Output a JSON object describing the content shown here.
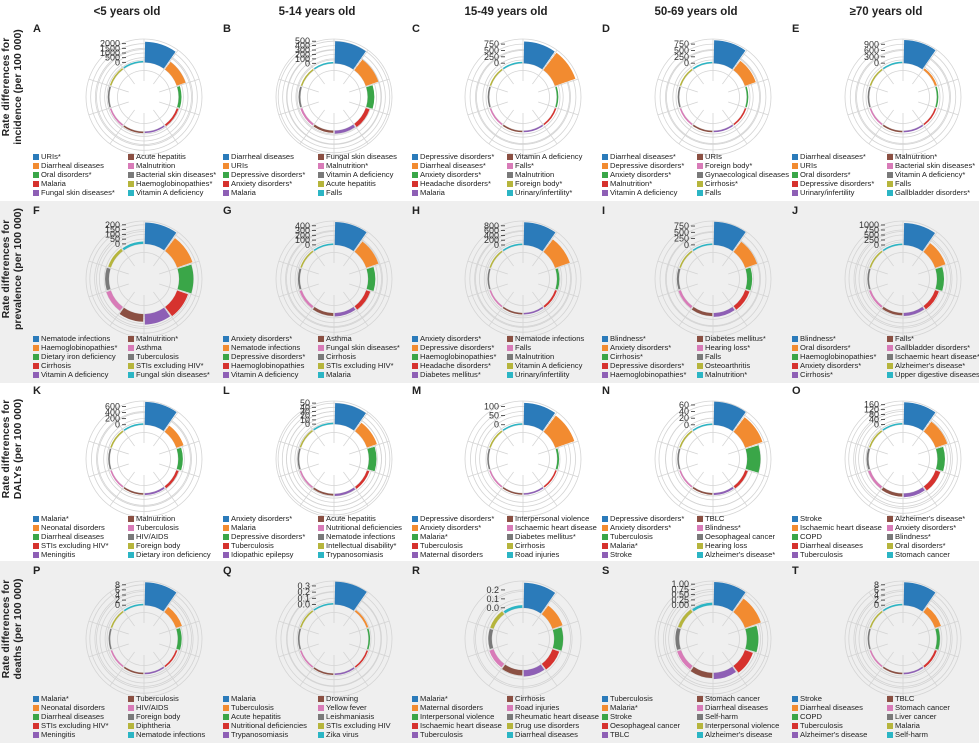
{
  "column_titles": [
    "<5 years old",
    "5-14 years old",
    "15-49 years old",
    "50-69 years old",
    "≥70 years old"
  ],
  "row_labels": [
    [
      "Rate differences for",
      "incidence (per 100 000)"
    ],
    [
      "Rate differences for",
      "prevalence (per 100 000)"
    ],
    [
      "Rate differences for",
      "DALYs (per 100 000)"
    ],
    [
      "Rate differences for",
      "deaths (per 100 000)"
    ]
  ],
  "colors": [
    "#2b7bba",
    "#f28b30",
    "#3aa648",
    "#d6322e",
    "#8e5fb5",
    "#8b5043",
    "#d87bb8",
    "#7a7a7a",
    "#b6b53c",
    "#2bb5c4"
  ],
  "chart_data": [
    {
      "letter": "A",
      "type": "polar-bar",
      "ticks": [
        "2000",
        "1500",
        "1000",
        "500",
        "0"
      ],
      "rmin": -2000,
      "rmax": 2500,
      "categories": [
        "URIs*",
        "Diarrheal diseases",
        "Oral disorders*",
        "Malaria",
        "Fungal skin diseases*",
        "Acute hepatitis",
        "Malnutrition",
        "Bacterial skin diseases*",
        "Haemoglobinopathies*",
        "Vitamin A deficiency"
      ],
      "values": [
        2200,
        1000,
        300,
        200,
        100,
        80,
        60,
        50,
        40,
        30
      ]
    },
    {
      "letter": "B",
      "type": "polar-bar",
      "ticks": [
        "500",
        "400",
        "300",
        "200",
        "100",
        "0"
      ],
      "rmin": -400,
      "rmax": 550,
      "categories": [
        "Diarrheal diseases",
        "URIs",
        "Depressive disorders*",
        "Anxiety disorders*",
        "Malaria",
        "Fungal skin diseases",
        "Malnutrition*",
        "Vitamin A deficiency",
        "Acute hepatitis",
        "Falls"
      ],
      "values": [
        500,
        300,
        150,
        90,
        70,
        50,
        45,
        40,
        30,
        25
      ]
    },
    {
      "letter": "C",
      "type": "polar-bar",
      "ticks": [
        "750",
        "500",
        "250",
        "0"
      ],
      "rmin": -700,
      "rmax": 950,
      "categories": [
        "Depressive disorders*",
        "Diarrheal diseases*",
        "Anxiety disorders*",
        "Headache disorders*",
        "Malaria",
        "Vitamin A deficiency",
        "Falls*",
        "Malnutrition",
        "Foreign body*",
        "Urinary/infertility*"
      ],
      "values": [
        850,
        850,
        60,
        50,
        40,
        35,
        30,
        25,
        20,
        20
      ]
    },
    {
      "letter": "D",
      "type": "polar-bar",
      "ticks": [
        "750",
        "500",
        "250",
        "0"
      ],
      "rmin": -700,
      "rmax": 950,
      "categories": [
        "Diarrheal diseases*",
        "Depressive disorders*",
        "Anxiety disorders*",
        "Malnutrition*",
        "Vitamin A deficiency",
        "URIs",
        "Foreign body*",
        "Gynaecological diseases",
        "Cirrhosis*",
        "Falls"
      ],
      "values": [
        900,
        450,
        50,
        40,
        35,
        30,
        25,
        20,
        20,
        15
      ]
    },
    {
      "letter": "E",
      "type": "polar-bar",
      "ticks": [
        "900",
        "600",
        "300",
        "0"
      ],
      "rmin": -850,
      "rmax": 1150,
      "categories": [
        "Diarrheal diseases*",
        "URIs",
        "Oral disorders*",
        "Depressive disorders*",
        "Urinary/infertility",
        "Malnutrition*",
        "Bacterial skin diseases*",
        "Vitamin A deficiency*",
        "Falls",
        "Gallbladder disorders*"
      ],
      "values": [
        1100,
        100,
        60,
        50,
        40,
        40,
        30,
        30,
        25,
        20
      ]
    },
    {
      "letter": "F",
      "type": "polar-bar",
      "ticks": [
        "200",
        "150",
        "100",
        "50",
        "0"
      ],
      "rmin": -200,
      "rmax": 240,
      "categories": [
        "Nematode infections",
        "Haemoglobinopathies*",
        "Dietary iron deficiency",
        "Cirrhosis",
        "Vitamin A deficiency",
        "Malnutrition*",
        "Asthma",
        "Tuberculosis",
        "STIs excluding HIV*",
        "Fungal skin diseases*"
      ],
      "values": [
        225,
        170,
        150,
        120,
        110,
        80,
        50,
        40,
        30,
        25
      ]
    },
    {
      "letter": "G",
      "type": "polar-bar",
      "ticks": [
        "400",
        "300",
        "200",
        "100",
        "0"
      ],
      "rmin": -380,
      "rmax": 500,
      "categories": [
        "Anxiety disorders*",
        "Nematode infections",
        "Depressive disorders*",
        "Haemoglobinopathies",
        "Vitamin A deficiency",
        "Asthma",
        "Fungal skin diseases*",
        "Cirrhosis",
        "STIs excluding HIV*",
        "Malaria"
      ],
      "values": [
        480,
        270,
        150,
        90,
        70,
        60,
        50,
        40,
        30,
        25
      ]
    },
    {
      "letter": "H",
      "type": "polar-bar",
      "ticks": [
        "800",
        "600",
        "400",
        "200",
        "0"
      ],
      "rmin": -750,
      "rmax": 1000,
      "categories": [
        "Anxiety disorders*",
        "Depressive disorders*",
        "Haemoglobinopathies*",
        "Headache disorders*",
        "Diabetes mellitus*",
        "Nematode infections",
        "Falls",
        "Malnutrition",
        "Vitamin A deficiency",
        "Urinary/infertility"
      ],
      "values": [
        950,
        650,
        100,
        80,
        60,
        50,
        40,
        35,
        30,
        25
      ]
    },
    {
      "letter": "I",
      "type": "polar-bar",
      "ticks": [
        "750",
        "500",
        "250",
        "0"
      ],
      "rmin": -720,
      "rmax": 950,
      "categories": [
        "Blindness*",
        "Anxiety disorders*",
        "Cirrhosis*",
        "Depressive disorders*",
        "Haemoglobinopathies*",
        "Diabetes mellitus*",
        "Hearing loss*",
        "Falls",
        "Osteoarthritis",
        "Malnutrition*"
      ],
      "values": [
        920,
        500,
        200,
        180,
        150,
        120,
        100,
        80,
        60,
        50
      ]
    },
    {
      "letter": "J",
      "type": "polar-bar",
      "ticks": [
        "1000",
        "750",
        "500",
        "250",
        "0"
      ],
      "rmin": -900,
      "rmax": 1200,
      "categories": [
        "Blindness*",
        "Oral disorders*",
        "Haemoglobinopathies*",
        "Anxiety disorders*",
        "Cirrhosis*",
        "Falls*",
        "Gallbladder disorders*",
        "Ischaemic heart disease*",
        "Alzheimer's disease*",
        "Upper digestive diseases*"
      ],
      "values": [
        1100,
        550,
        350,
        200,
        150,
        120,
        100,
        80,
        60,
        50
      ]
    },
    {
      "letter": "K",
      "type": "polar-bar",
      "ticks": [
        "600",
        "400",
        "200",
        "0"
      ],
      "rmin": -600,
      "rmax": 780,
      "categories": [
        "Malaria*",
        "Neonatal disorders",
        "Diarrheal diseases",
        "STIs excluding HIV*",
        "Meningitis",
        "Malnutrition",
        "Tuberculosis",
        "HIV/AIDS",
        "Foreign body",
        "Dietary iron deficiency"
      ],
      "values": [
        750,
        250,
        150,
        80,
        60,
        40,
        30,
        25,
        20,
        15
      ]
    },
    {
      "letter": "L",
      "type": "polar-bar",
      "ticks": [
        "50",
        "40",
        "30",
        "20",
        "10",
        "0"
      ],
      "rmin": -45,
      "rmax": 55,
      "categories": [
        "Anxiety disorders*",
        "Malaria",
        "Depressive disorders*",
        "Tuberculosis",
        "Idiopathic epilepsy",
        "Acute hepatitis",
        "Nutritional deficiencies",
        "Nematode infections",
        "Intellectual disability*",
        "Trypanosomiasis"
      ],
      "values": [
        50,
        25,
        18,
        6,
        5,
        4,
        3,
        3,
        2,
        2
      ]
    },
    {
      "letter": "M",
      "type": "polar-bar",
      "ticks": [
        "100",
        "50",
        "0"
      ],
      "rmin": -100,
      "rmax": 130,
      "categories": [
        "Depressive disorders*",
        "Anxiety disorders*",
        "Malaria*",
        "Tuberculosis",
        "Maternal disorders",
        "Interpersonal violence",
        "Ischaemic heart disease",
        "Diabetes mellitus*",
        "Cirrhosis",
        "Road injuries"
      ],
      "values": [
        120,
        110,
        10,
        8,
        6,
        5,
        5,
        4,
        3,
        3
      ]
    },
    {
      "letter": "N",
      "type": "polar-bar",
      "ticks": [
        "60",
        "40",
        "20",
        "0"
      ],
      "rmin": -55,
      "rmax": 72,
      "categories": [
        "Depressive disorders*",
        "Anxiety disorders*",
        "Tuberculosis",
        "Malaria*",
        "Stroke",
        "TBLC",
        "Blindness*",
        "Oesophageal cancer",
        "Hearing loss",
        "Alzheimer's disease*"
      ],
      "values": [
        70,
        55,
        40,
        8,
        6,
        5,
        4,
        3,
        3,
        2
      ]
    },
    {
      "letter": "O",
      "type": "polar-bar",
      "ticks": [
        "160",
        "120",
        "80",
        "40",
        "0"
      ],
      "rmin": -150,
      "rmax": 190,
      "categories": [
        "Stroke",
        "Ischaemic heart disease",
        "COPD",
        "Diarrheal diseases",
        "Tuberculosis",
        "Alzheimer's disease*",
        "Anxiety disorders*",
        "Blindness*",
        "Oral disorders*",
        "Stomach cancer"
      ],
      "values": [
        180,
        100,
        60,
        40,
        30,
        25,
        20,
        15,
        12,
        10
      ]
    },
    {
      "letter": "P",
      "type": "polar-bar",
      "ticks": [
        "8",
        "6",
        "4",
        "2",
        "0"
      ],
      "rmin": -7,
      "rmax": 9.5,
      "categories": [
        "Malaria*",
        "Neonatal disorders",
        "Diarrheal diseases",
        "STIs excluding HIV*",
        "Meningitis",
        "Tuberculosis",
        "HIV/AIDS",
        "Foreign body",
        "Diphtheria",
        "Nematode infections"
      ],
      "values": [
        9,
        2.5,
        1.5,
        0.6,
        0.5,
        0.4,
        0.3,
        0.3,
        0.2,
        0.2
      ]
    },
    {
      "letter": "Q",
      "type": "polar-bar",
      "ticks": [
        "0.3",
        "0.2",
        "0.1",
        "0.0"
      ],
      "rmin": -0.3,
      "rmax": 0.38,
      "categories": [
        "Malaria",
        "Tuberculosis",
        "Acute hepatitis",
        "Nutritional deficiencies",
        "Trypanosomiasis",
        "Drowning",
        "Yellow fever",
        "Leishmaniasis",
        "STIs excluding HIV",
        "Zika virus"
      ],
      "values": [
        0.37,
        0.03,
        0.02,
        0.02,
        0.01,
        0.01,
        0.01,
        0.01,
        0.01,
        0.01
      ]
    },
    {
      "letter": "R",
      "type": "polar-bar",
      "ticks": [
        "0.2",
        "0.1",
        "0.0"
      ],
      "rmin": -0.17,
      "rmax": 0.3,
      "categories": [
        "Malaria*",
        "Maternal disorders",
        "Interpersonal violence",
        "Ischaemic heart disease",
        "Tuberculosis",
        "Cirrhosis",
        "Road injuries",
        "Rheumatic heart disease",
        "Drug use disorders",
        "Diarrheal diseases"
      ],
      "values": [
        0.28,
        0.12,
        0.1,
        0.08,
        0.07,
        0.06,
        0.05,
        0.04,
        0.04,
        0.03
      ]
    },
    {
      "letter": "S",
      "type": "polar-bar",
      "ticks": [
        "1.00",
        "0.75",
        "0.50",
        "0.25",
        "0.00"
      ],
      "rmin": -0.85,
      "rmax": 1.15,
      "categories": [
        "Tuberculosis",
        "Malaria*",
        "Stroke",
        "Oesophageal cancer",
        "TBLC",
        "Stomach cancer",
        "Diarrheal diseases",
        "Self-harm",
        "Interpersonal violence",
        "Alzheimer's disease"
      ],
      "values": [
        1.1,
        0.8,
        0.55,
        0.4,
        0.3,
        0.25,
        0.2,
        0.18,
        0.15,
        0.12
      ]
    },
    {
      "letter": "T",
      "type": "polar-bar",
      "ticks": [
        "8",
        "6",
        "4",
        "2",
        "0"
      ],
      "rmin": -7,
      "rmax": 9.5,
      "categories": [
        "Stroke",
        "Diarrheal diseases",
        "COPD",
        "Tuberculosis",
        "Alzheimer's disease",
        "TBLC",
        "Stomach cancer",
        "Liver cancer",
        "Malaria",
        "Self-harm"
      ],
      "values": [
        9,
        2.5,
        1.2,
        0.8,
        0.6,
        0.5,
        0.4,
        0.3,
        0.3,
        0.2
      ]
    }
  ]
}
